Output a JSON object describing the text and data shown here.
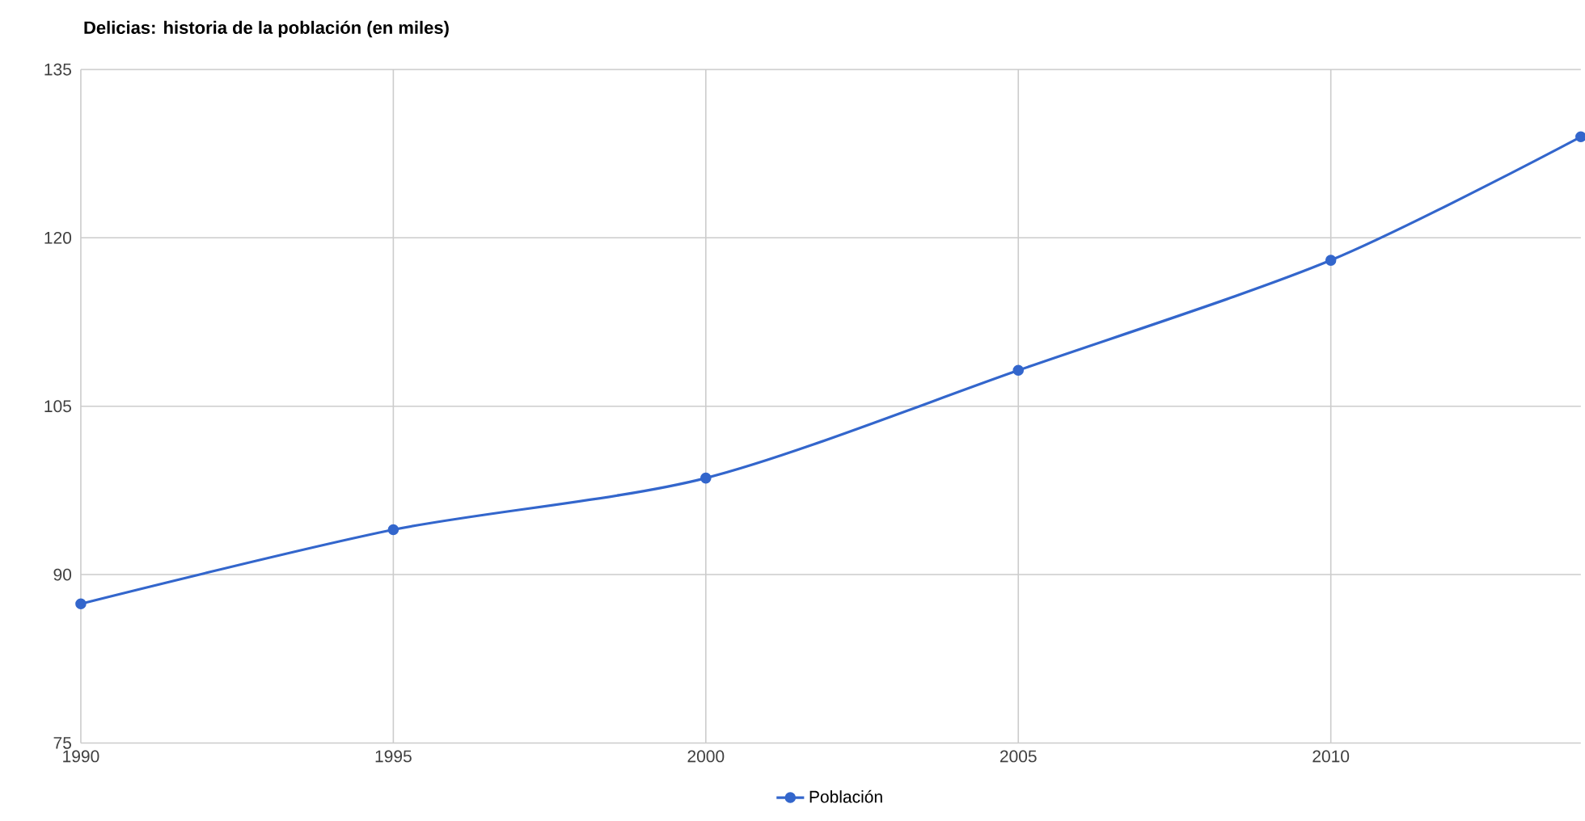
{
  "chart_data": {
    "type": "line",
    "title": "Delicias: historia de la población (en miles)",
    "x": [
      1990,
      1995,
      2000,
      2005,
      2010,
      2014
    ],
    "series": [
      {
        "name": "Población",
        "color": "#3366cc",
        "values": [
          87.4,
          94.0,
          98.6,
          108.2,
          118.0,
          129.0
        ]
      }
    ],
    "xlim": [
      1990,
      2014
    ],
    "xticks": [
      1990,
      1995,
      2000,
      2005,
      2010
    ],
    "ylim": [
      75,
      135
    ],
    "yticks": [
      75,
      90,
      105,
      120,
      135
    ],
    "grid": true,
    "legend": "bottom",
    "marker": "circle",
    "line_style": "solid"
  }
}
